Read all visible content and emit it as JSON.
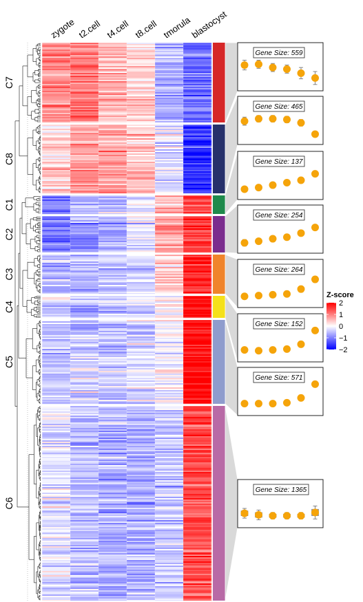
{
  "chart_data": {
    "type": "heatmap",
    "columns": [
      "zygote",
      "t2.cell",
      "t4.cell",
      "t8.cell",
      "tmorula",
      "blastocyst"
    ],
    "legend": {
      "title": "Z-score",
      "ticks": [
        2,
        1,
        0,
        -1,
        -2
      ],
      "tick_labels": [
        "2",
        "1",
        "0",
        "−1",
        "−2"
      ],
      "colors": {
        "low": "#0000ff",
        "mid": "#ffffff",
        "high": "#ff0000"
      }
    },
    "clusters": [
      {
        "name": "C7",
        "color": "#d62728",
        "gene_size": 559,
        "gene_size_label": "Gene Size: 559",
        "profile": [
          1.3,
          1.4,
          1.0,
          0.8,
          0.3,
          -0.3
        ],
        "spread": [
          0.6,
          0.5,
          0.5,
          0.5,
          0.7,
          0.8
        ],
        "pattern": [
          0.9,
          1.1,
          0.6,
          0.3,
          -0.6,
          -1.1
        ]
      },
      {
        "name": "C8",
        "color": "#27316b",
        "gene_size": 465,
        "gene_size_label": "Gene Size: 465",
        "profile": [
          1.0,
          1.3,
          1.3,
          1.2,
          0.8,
          -0.6
        ],
        "spread": [
          0.5,
          0.4,
          0.4,
          0.4,
          0.4,
          0.2
        ],
        "pattern": [
          0.4,
          0.8,
          0.7,
          0.5,
          -0.2,
          -1.6
        ]
      },
      {
        "name": "C1",
        "color": "#1f8a4c",
        "gene_size": 137,
        "gene_size_label": "Gene Size: 137",
        "profile": [
          -0.6,
          -0.4,
          -0.1,
          0.2,
          0.5,
          1.3
        ],
        "spread": [
          0.1,
          0.1,
          0.1,
          0.1,
          0.1,
          0.1
        ],
        "pattern": [
          -0.9,
          -0.6,
          -0.5,
          -0.1,
          0.6,
          1.4
        ]
      },
      {
        "name": "C2",
        "color": "#7b2d8e",
        "gene_size": 254,
        "gene_size_label": "Gene Size: 254",
        "profile": [
          -0.6,
          -0.4,
          -0.1,
          0.1,
          0.6,
          1.3
        ],
        "spread": [
          0.4,
          0.2,
          0.3,
          0.2,
          0.3,
          0.3
        ],
        "pattern": [
          -1.0,
          -0.8,
          -0.6,
          -0.2,
          0.8,
          1.5
        ]
      },
      {
        "name": "C3",
        "color": "#f0842b",
        "gene_size": 264,
        "gene_size_label": "Gene Size: 264",
        "profile": [
          -0.5,
          -0.4,
          -0.3,
          -0.2,
          0.4,
          1.6
        ],
        "spread": [
          0.2,
          0.3,
          0.2,
          0.2,
          0.3,
          0.1
        ],
        "pattern": [
          -0.6,
          -0.5,
          -0.4,
          -0.3,
          0.4,
          1.7
        ]
      },
      {
        "name": "C4",
        "color": "#f5e11a",
        "gene_size": 152,
        "gene_size_label": "Gene Size: 152",
        "profile": [
          -0.4,
          -0.5,
          -0.4,
          -0.3,
          0.3,
          2.0
        ],
        "spread": [
          0.05,
          0.05,
          0.05,
          0.05,
          0.05,
          0.05
        ],
        "pattern": [
          -0.4,
          -0.5,
          -0.4,
          -0.3,
          0.1,
          2.0
        ]
      },
      {
        "name": "C5",
        "color": "#8f9ccd",
        "gene_size": 571,
        "gene_size_label": "Gene Size: 571",
        "profile": [
          -0.4,
          -0.4,
          -0.4,
          -0.3,
          0.3,
          2.0
        ],
        "spread": [
          0.1,
          0.1,
          0.1,
          0.1,
          0.2,
          0.1
        ],
        "pattern": [
          -0.5,
          -0.4,
          -0.4,
          -0.3,
          0.0,
          2.0
        ]
      },
      {
        "name": "C6",
        "color": "#b86aa6",
        "gene_size": 1365,
        "gene_size_label": "Gene Size: 1365",
        "profile": [
          -0.1,
          -0.3,
          -0.4,
          -0.4,
          -0.4,
          0.0
        ],
        "spread": [
          0.6,
          0.6,
          0.4,
          0.4,
          0.4,
          0.8
        ],
        "pattern": [
          -0.2,
          -0.5,
          -0.6,
          -0.6,
          -0.4,
          1.4
        ]
      }
    ]
  }
}
